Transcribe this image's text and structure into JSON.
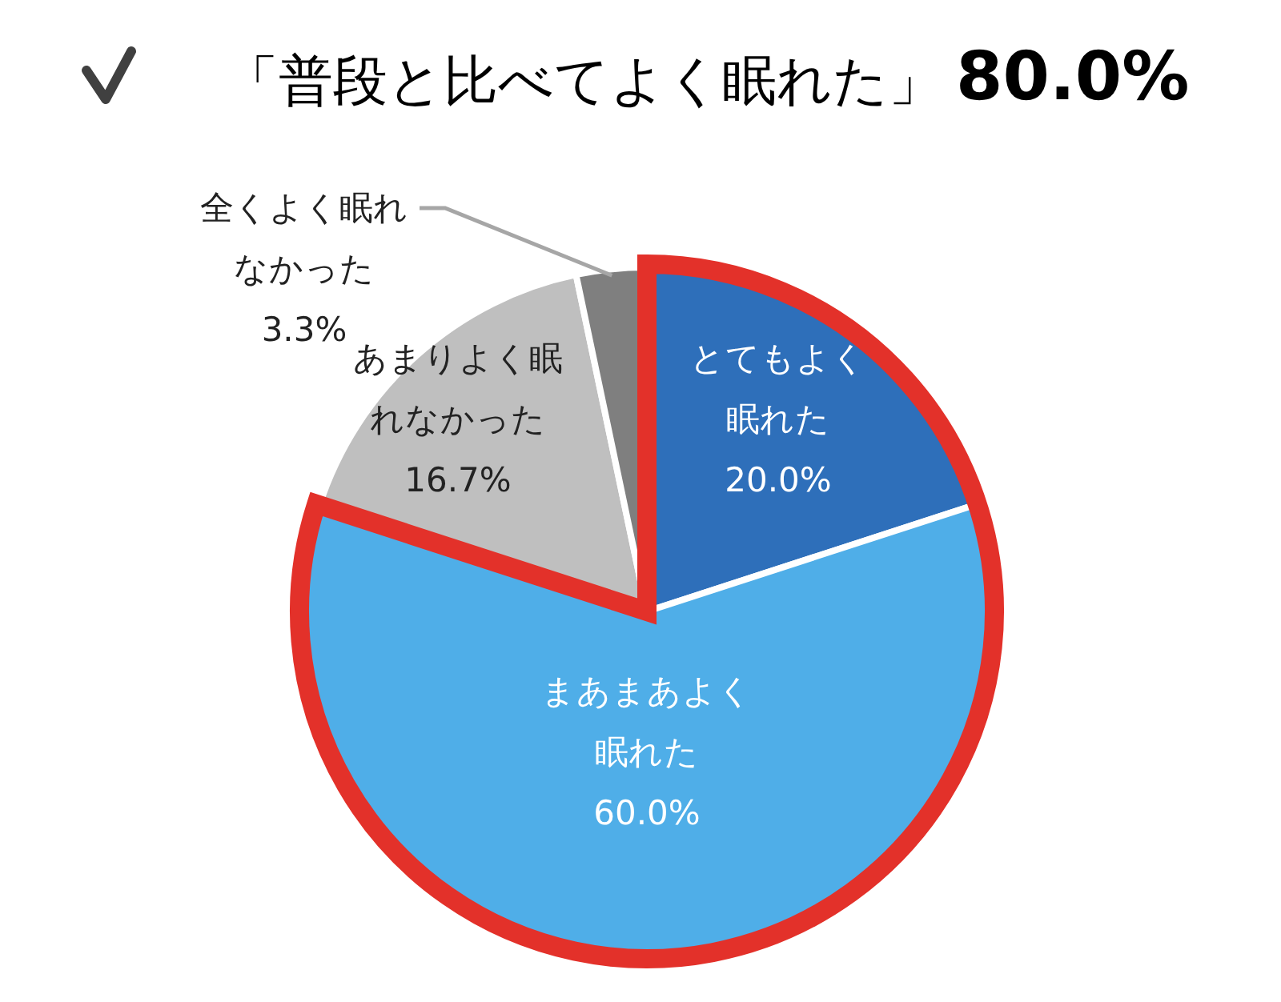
{
  "chart_data": {
    "type": "pie",
    "title": "「普段と比べてよく眠れた」**80.0%**",
    "categories": [
      "とてもよく眠れた",
      "まあまあよく眠れた",
      "あまりよく眠れなかった",
      "全くよく眠れなかった"
    ],
    "values": [
      20.0,
      60.0,
      16.7,
      3.3
    ],
    "value_labels": [
      "20.0%",
      "60.0%",
      "16.7%",
      "3.3%"
    ],
    "colors": [
      "#2e6fba",
      "#4faee8",
      "#bfbfbf",
      "#7f7f7f"
    ]
  }
}
